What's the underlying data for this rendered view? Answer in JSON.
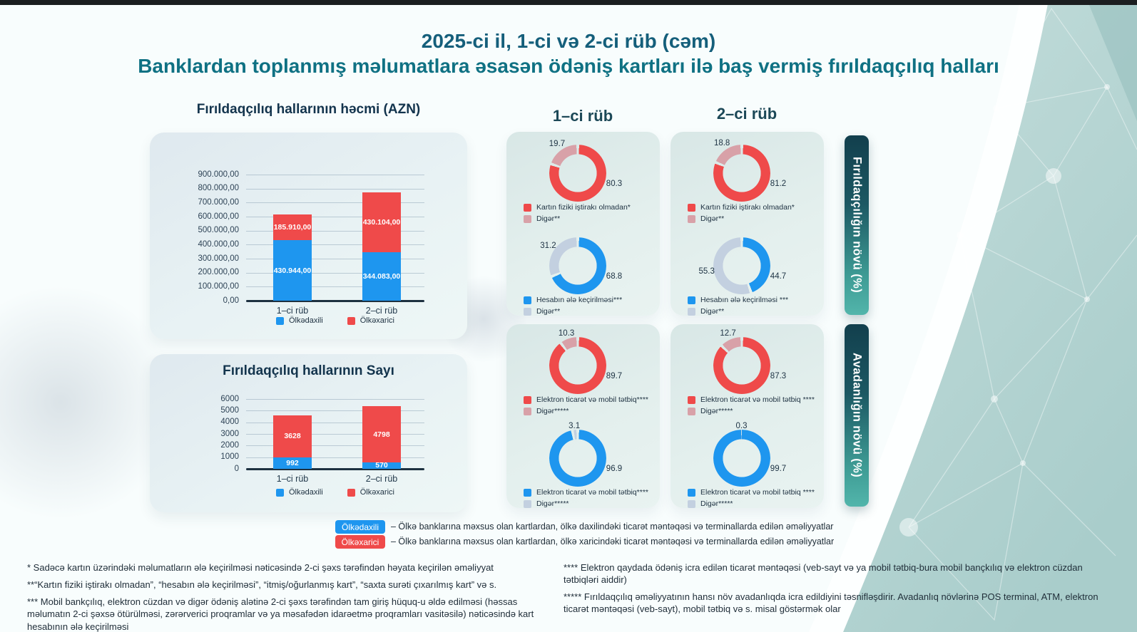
{
  "page": {
    "title_line1": "2025-ci il, 1-ci və 2-ci rüb (cəm)",
    "title_line2": "Banklardan toplanmış məlumatlara əsasən ödəniş kartları ilə baş vermiş fırıldaqçılıq halları"
  },
  "colors": {
    "blue": "#1e96ef",
    "red": "#ef4a4a",
    "pink_other": "#d8a1a8",
    "bluegray_other": "#c3d0e0",
    "navy_text": "#13344d",
    "teal_title": "#0f7183",
    "ribbon_top": "#123f4d",
    "ribbon_bottom": "#52b5ab"
  },
  "quarter_headers": [
    "1–ci rüb",
    "2–ci rüb"
  ],
  "ribbons": [
    "Fırıldaqçılığın növü (%)",
    "Avadanlığın növü (%)"
  ],
  "chart_data": [
    {
      "id": "volume",
      "type": "bar",
      "stacked": true,
      "title": "Fırıldaqçılıq hallarının həcmi (AZN)",
      "categories": [
        "1–ci rüb",
        "2–ci rüb"
      ],
      "series": [
        {
          "name": "Ölkədaxili",
          "color": "#1e96ef",
          "values": [
            430944,
            344083
          ],
          "value_labels": [
            "430.944,00",
            "344.083,00"
          ]
        },
        {
          "name": "Ölkəxarici",
          "color": "#ef4a4a",
          "values": [
            185910,
            430104
          ],
          "value_labels": [
            "185.910,00",
            "430.104,00"
          ]
        }
      ],
      "ylim": [
        0,
        900000
      ],
      "yticks": [
        "900.000,00",
        "800.000,00",
        "700.000,00",
        "600.000,00",
        "500.000,00",
        "400.000,00",
        "300.000,00",
        "200.000,00",
        "100.000,00",
        "0,00"
      ],
      "grid": true,
      "legend_position": "bottom"
    },
    {
      "id": "count",
      "type": "bar",
      "stacked": true,
      "title": "Fırıldaqçılıq hallarının Sayı",
      "categories": [
        "1–ci rüb",
        "2–ci rüb"
      ],
      "series": [
        {
          "name": "Ölkədaxili",
          "color": "#1e96ef",
          "values": [
            992,
            570
          ],
          "value_labels": [
            "992",
            "570"
          ]
        },
        {
          "name": "Ölkəxarici",
          "color": "#ef4a4a",
          "values": [
            3628,
            4798
          ],
          "value_labels": [
            "3628",
            "4798"
          ]
        }
      ],
      "ylim": [
        0,
        6000
      ],
      "yticks": [
        "6000",
        "5000",
        "4000",
        "3000",
        "2000",
        "1000",
        "0"
      ],
      "grid": true,
      "legend_position": "bottom"
    },
    {
      "id": "q1-fraud-a",
      "type": "donut",
      "quarter": "1–ci rüb",
      "group": "Fırıldaqçılığın növü (%)",
      "values": [
        80.3,
        19.7
      ],
      "labels": [
        "Kartın fiziki iştirakı olmadan*",
        "Digər**"
      ],
      "colors": [
        "#ef4a4a",
        "#d8a1a8"
      ]
    },
    {
      "id": "q1-fraud-b",
      "type": "donut",
      "quarter": "1–ci rüb",
      "group": "Fırıldaqçılığın növü (%)",
      "values": [
        68.8,
        31.2
      ],
      "labels": [
        "Hesabın ələ keçirilməsi***",
        "Digər**"
      ],
      "colors": [
        "#1e96ef",
        "#c3d0e0"
      ]
    },
    {
      "id": "q2-fraud-a",
      "type": "donut",
      "quarter": "2–ci rüb",
      "group": "Fırıldaqçılığın növü (%)",
      "values": [
        81.2,
        18.8
      ],
      "labels": [
        "Kartın fiziki iştirakı olmadan*",
        "Digər**"
      ],
      "colors": [
        "#ef4a4a",
        "#d8a1a8"
      ]
    },
    {
      "id": "q2-fraud-b",
      "type": "donut",
      "quarter": "2–ci rüb",
      "group": "Fırıldaqçılığın növü (%)",
      "values": [
        44.7,
        55.3
      ],
      "labels": [
        "Hesabın ələ keçirilməsi ***",
        "Digər**"
      ],
      "colors": [
        "#1e96ef",
        "#c3d0e0"
      ]
    },
    {
      "id": "q1-device-a",
      "type": "donut",
      "quarter": "1–ci rüb",
      "group": "Avadanlığın növü (%)",
      "values": [
        89.7,
        10.3
      ],
      "labels": [
        "Elektron ticarət və mobil tətbiq****",
        "Digər*****"
      ],
      "colors": [
        "#ef4a4a",
        "#d8a1a8"
      ]
    },
    {
      "id": "q1-device-b",
      "type": "donut",
      "quarter": "1–ci rüb",
      "group": "Avadanlığın növü (%)",
      "values": [
        96.9,
        3.1
      ],
      "labels": [
        "Elektron ticarət və mobil tətbiq****",
        "Digər*****"
      ],
      "colors": [
        "#1e96ef",
        "#c3d0e0"
      ]
    },
    {
      "id": "q2-device-a",
      "type": "donut",
      "quarter": "2–ci rüb",
      "group": "Avadanlığın növü (%)",
      "values": [
        87.3,
        12.7
      ],
      "labels": [
        "Elektron ticarət və mobil tətbiq ****",
        "Digər*****"
      ],
      "colors": [
        "#ef4a4a",
        "#d8a1a8"
      ]
    },
    {
      "id": "q2-device-b",
      "type": "donut",
      "quarter": "2–ci rüb",
      "group": "Avadanlığın növü (%)",
      "values": [
        99.7,
        0.3
      ],
      "labels": [
        "Elektron ticarət və mobil tətbiq ****",
        "Digər*****"
      ],
      "colors": [
        "#1e96ef",
        "#c3d0e0"
      ]
    }
  ],
  "bottom_legend": [
    {
      "pill": "Ölkədaxili",
      "color": "#1e96ef",
      "text": "– Ölkə banklarına məxsus olan kartlardan, ölkə daxilindəki ticarət məntəqəsi və terminallarda edilən əməliyyatlar"
    },
    {
      "pill": "Ölkəxarici",
      "color": "#ef4a4a",
      "text": "– Ölkə banklarına məxsus olan kartlardan, ölkə xaricindəki ticarət məntəqəsi və terminallarda edilən əməliyyatlar"
    }
  ],
  "footnotes": {
    "left": [
      "* Sadəcə kartın üzərindəki məlumatların ələ keçirilməsi nəticəsində 2-ci şəxs tərəfindən həyata keçirilən əməliyyat",
      "**“Kartın fiziki iştirakı olmadan”, “hesabın ələ keçirilməsi”, “itmiş/oğurlanmış kart”, “saxta surəti çıxarılmış kart” və s.",
      "*** Mobil bankçılıq, elektron cüzdan və digər ödəniş alətinə 2-ci şəxs tərəfindən tam giriş hüquq-u əldə edilməsi (həssas məlumatın 2-ci şəxsə ötürülməsi, zərərverici proqramlar və ya məsafədən idarəetmə proqramları vasitəsilə) nəticəsində kart hesabının ələ keçirilməsi"
    ],
    "right": [
      "**** Elektron qaydada ödəniş icra edilən ticarət məntəqəsi (veb-sayt və ya mobil tətbiq-bura mobil bançkılıq və elektron cüzdan tətbiqləri aiddir)",
      "***** Fırıldaqçılıq əməliyyatının hansı növ avadanlıqda icra edildiyini təsnifləşdirir. Avadanlıq növlərinə POS terminal, ATM, elektron ticarət məntəqəsi (veb-sayt), mobil tətbiq və s. misal göstərmək olar"
    ]
  }
}
